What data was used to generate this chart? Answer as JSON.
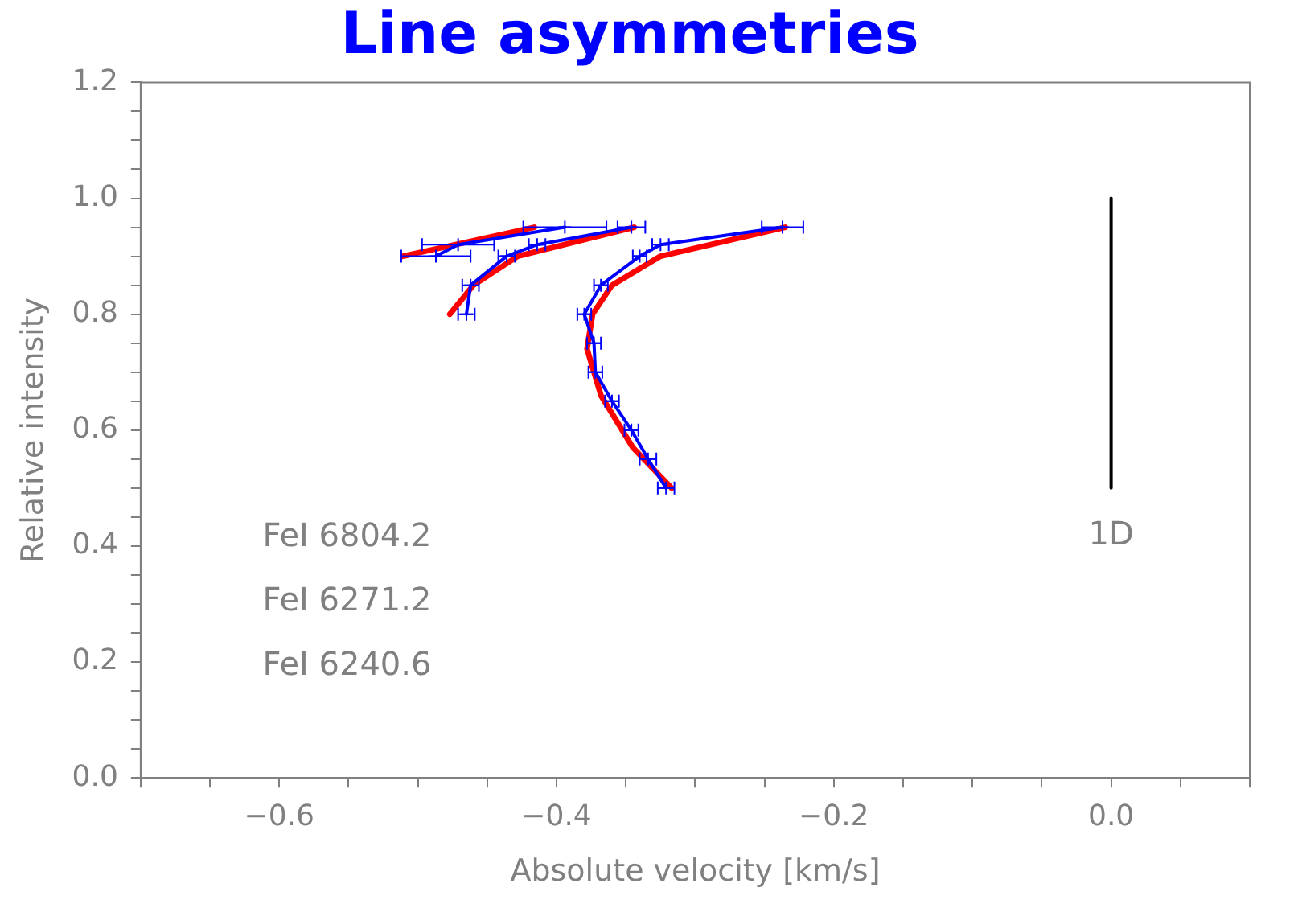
{
  "chart_data": {
    "type": "line",
    "title": "Line asymmetries",
    "xlabel": "Absolute velocity [km/s]",
    "ylabel": "Relative intensity",
    "xlim": [
      -0.7,
      0.1
    ],
    "ylim": [
      0,
      1.2
    ],
    "xticks": [
      {
        "value": -0.7,
        "label": null
      },
      {
        "value": -0.65,
        "label": null
      },
      {
        "value": -0.6,
        "label": "−0.6"
      },
      {
        "value": -0.55,
        "label": null
      },
      {
        "value": -0.5,
        "label": null
      },
      {
        "value": -0.45,
        "label": null
      },
      {
        "value": -0.4,
        "label": "−0.4"
      },
      {
        "value": -0.35,
        "label": null
      },
      {
        "value": -0.3,
        "label": null
      },
      {
        "value": -0.25,
        "label": null
      },
      {
        "value": -0.2,
        "label": "−0.2"
      },
      {
        "value": -0.15,
        "label": null
      },
      {
        "value": -0.1,
        "label": null
      },
      {
        "value": -0.05,
        "label": null
      },
      {
        "value": 0,
        "label": "0.0"
      },
      {
        "value": 0.05,
        "label": null
      },
      {
        "value": 0.1,
        "label": null
      }
    ],
    "yticks": [
      {
        "value": 0,
        "label": "0.0"
      },
      {
        "value": 0.05,
        "label": null
      },
      {
        "value": 0.1,
        "label": null
      },
      {
        "value": 0.15,
        "label": null
      },
      {
        "value": 0.2,
        "label": "0.2"
      },
      {
        "value": 0.25,
        "label": null
      },
      {
        "value": 0.3,
        "label": null
      },
      {
        "value": 0.35,
        "label": null
      },
      {
        "value": 0.4,
        "label": "0.4"
      },
      {
        "value": 0.45,
        "label": null
      },
      {
        "value": 0.5,
        "label": null
      },
      {
        "value": 0.55,
        "label": null
      },
      {
        "value": 0.6,
        "label": "0.6"
      },
      {
        "value": 0.65,
        "label": null
      },
      {
        "value": 0.7,
        "label": null
      },
      {
        "value": 0.75,
        "label": null
      },
      {
        "value": 0.8,
        "label": "0.8"
      },
      {
        "value": 0.85,
        "label": null
      },
      {
        "value": 0.9,
        "label": null
      },
      {
        "value": 0.95,
        "label": null
      },
      {
        "value": 1.0,
        "label": "1.0"
      },
      {
        "value": 1.05,
        "label": null
      },
      {
        "value": 1.1,
        "label": null
      },
      {
        "value": 1.15,
        "label": null
      },
      {
        "value": 1.2,
        "label": "1.2"
      }
    ],
    "grid": false,
    "legend": false,
    "marker": "none",
    "line_style": "solid",
    "annotations": [
      "FeI 6804.2",
      "FeI 6271.2",
      "FeI 6240.6"
    ],
    "series": [
      {
        "color": "#0000ff",
        "marker": "cross",
        "x": [
          -0.487,
          -0.471,
          -0.394
        ],
        "values": [
          0.9,
          0.92,
          0.95
        ],
        "xerrors": [
          0.025,
          0.026,
          0.03
        ]
      },
      {
        "color": "#0000ff",
        "marker": "cross",
        "x": [
          -0.465,
          -0.462,
          -0.436,
          -0.414,
          -0.346
        ],
        "values": [
          0.8,
          0.85,
          0.9,
          0.92,
          0.95
        ],
        "xerrors": [
          0.006,
          0.006,
          0.006,
          0.006,
          0.01
        ]
      },
      {
        "color": "#0000ff",
        "marker": "cross",
        "x": [
          -0.321,
          -0.334,
          -0.346,
          -0.36,
          -0.372,
          -0.373,
          -0.38,
          -0.368,
          -0.34,
          -0.325,
          -0.237
        ],
        "values": [
          0.5,
          0.55,
          0.6,
          0.65,
          0.7,
          0.75,
          0.8,
          0.85,
          0.9,
          0.92,
          0.95
        ],
        "xerrors": [
          0.006,
          0.006,
          0.005,
          0.005,
          0.005,
          0.005,
          0.005,
          0.005,
          0.005,
          0.006,
          0.015
        ]
      },
      {
        "color": "#ff0000",
        "x": [
          -0.511,
          -0.416
        ],
        "values": [
          0.9,
          0.95
        ]
      },
      {
        "color": "#ff0000",
        "x": [
          -0.477,
          -0.46,
          -0.428,
          -0.344
        ],
        "values": [
          0.8,
          0.85,
          0.9,
          0.95
        ]
      },
      {
        "color": "#ff0000",
        "x": [
          -0.317,
          -0.345,
          -0.368,
          -0.378,
          -0.374,
          -0.36,
          -0.325,
          -0.235
        ],
        "values": [
          0.5,
          0.57,
          0.66,
          0.74,
          0.8,
          0.85,
          0.9,
          0.95
        ]
      },
      {
        "name": "1D",
        "color": "#000000",
        "x": [
          0,
          0
        ],
        "values": [
          0.5,
          1.0
        ]
      }
    ]
  }
}
